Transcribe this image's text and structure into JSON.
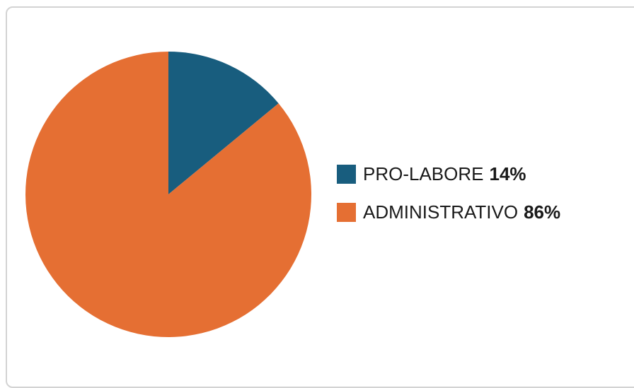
{
  "chart_data": {
    "type": "pie",
    "slices": [
      {
        "label": "PRO-LABORE",
        "value": 14,
        "value_text": "14%",
        "color": "#185d7e"
      },
      {
        "label": "ADMINISTRATIVO",
        "value": 86,
        "value_text": "86%",
        "color": "#e56f33"
      }
    ],
    "legend_position": "right"
  }
}
